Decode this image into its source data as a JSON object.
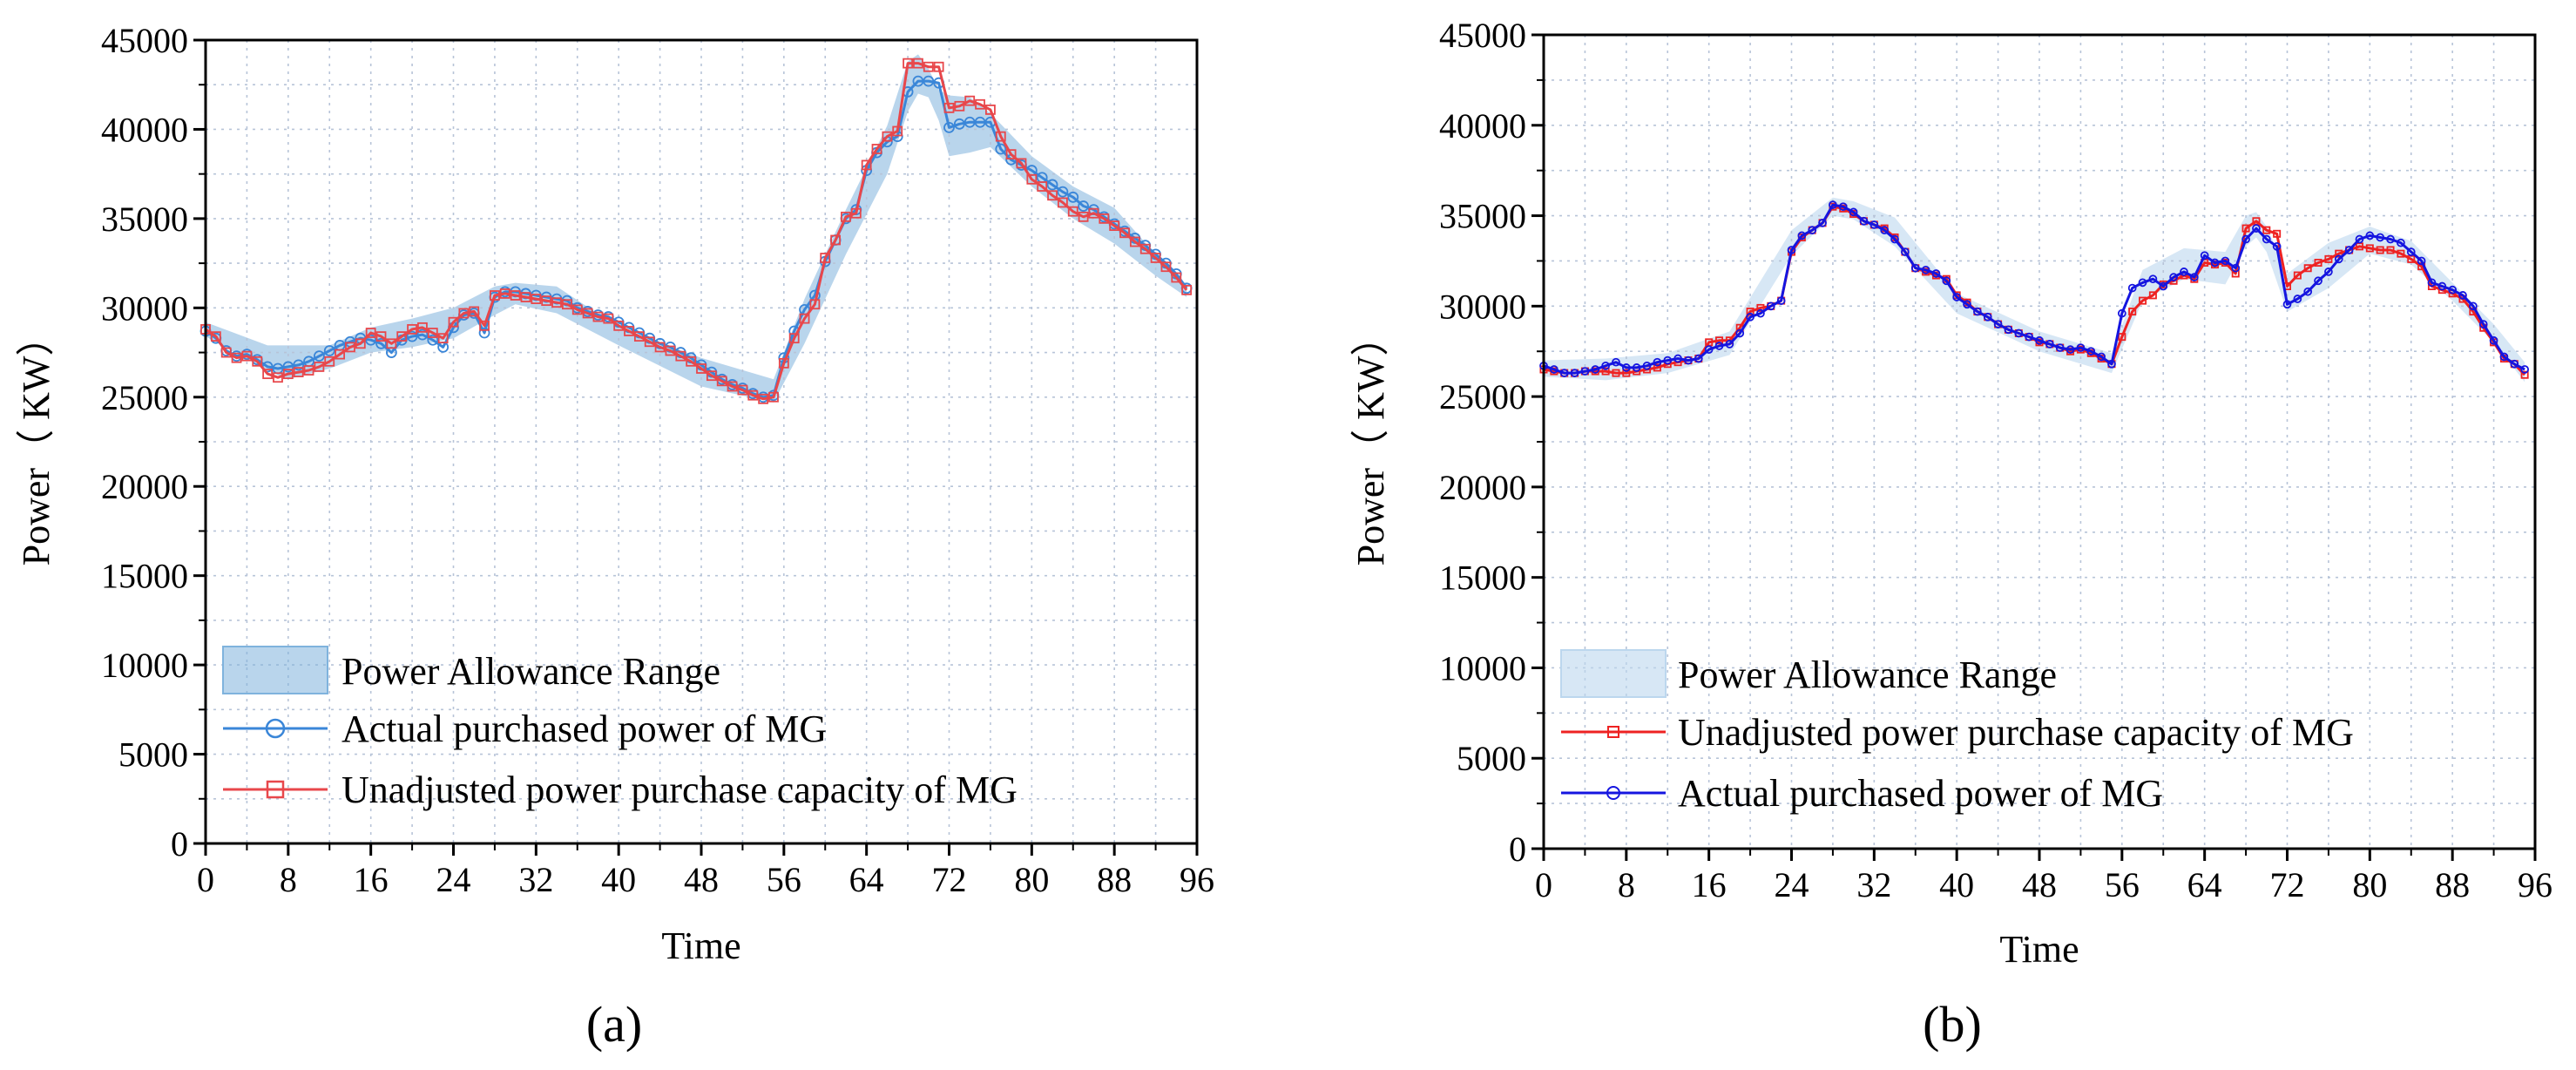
{
  "chart_data": [
    {
      "panel_label": "(a)",
      "type": "line",
      "xlabel": "Time",
      "ylabel": "Power（ KW）",
      "xlim": [
        0,
        96
      ],
      "ylim": [
        0,
        45000
      ],
      "xticks": [
        0,
        8,
        16,
        24,
        32,
        40,
        48,
        56,
        64,
        72,
        80,
        88,
        96
      ],
      "yticks": [
        0,
        5000,
        10000,
        15000,
        20000,
        25000,
        30000,
        35000,
        40000,
        45000
      ],
      "legend_position": "bottom-left",
      "grid": true,
      "band": {
        "name": "Power Allowance Range",
        "color": "#7fb3dd",
        "opacity": 0.55,
        "x": [
          0,
          6,
          8,
          12,
          16,
          20,
          24,
          28,
          30,
          34,
          40,
          48,
          55,
          58,
          62,
          66,
          68,
          69,
          70,
          71,
          72,
          74,
          76,
          80,
          84,
          88,
          92,
          95
        ],
        "lower": [
          28400,
          26500,
          26000,
          26600,
          27500,
          27800,
          28300,
          29600,
          30200,
          29700,
          27900,
          25600,
          24700,
          28000,
          33000,
          37500,
          41000,
          42000,
          41800,
          40500,
          38500,
          38700,
          39000,
          36800,
          35000,
          33600,
          31800,
          30600
        ],
        "upper": [
          29200,
          27900,
          27900,
          27900,
          28900,
          29400,
          30000,
          31200,
          31400,
          31200,
          28900,
          27200,
          26000,
          30500,
          35500,
          40200,
          43800,
          44200,
          43400,
          42200,
          41900,
          41800,
          40900,
          38500,
          36800,
          35600,
          33000,
          31300
        ]
      },
      "series": [
        {
          "name": "Actual purchased power of MG",
          "color": "#3a86d8",
          "marker": "circle",
          "x": [
            0,
            1,
            2,
            3,
            4,
            5,
            6,
            7,
            8,
            9,
            10,
            11,
            12,
            13,
            14,
            15,
            16,
            17,
            18,
            19,
            20,
            21,
            22,
            23,
            24,
            25,
            26,
            27,
            28,
            29,
            30,
            31,
            32,
            33,
            34,
            35,
            36,
            37,
            38,
            39,
            40,
            41,
            42,
            43,
            44,
            45,
            46,
            47,
            48,
            49,
            50,
            51,
            52,
            53,
            54,
            55,
            56,
            57,
            58,
            59,
            60,
            61,
            62,
            63,
            64,
            65,
            66,
            67,
            68,
            69,
            70,
            71,
            72,
            73,
            74,
            75,
            76,
            77,
            78,
            79,
            80,
            81,
            82,
            83,
            84,
            85,
            86,
            87,
            88,
            89,
            90,
            91,
            92,
            93,
            94,
            95
          ],
          "y": [
            28700,
            28300,
            27600,
            27300,
            27400,
            27100,
            26700,
            26600,
            26700,
            26800,
            27000,
            27300,
            27600,
            27900,
            28100,
            28300,
            28200,
            28000,
            27500,
            28200,
            28400,
            28500,
            28200,
            27800,
            28900,
            29600,
            29700,
            28600,
            30600,
            30900,
            30900,
            30800,
            30700,
            30600,
            30500,
            30400,
            30000,
            29800,
            29600,
            29500,
            29200,
            28900,
            28600,
            28300,
            28000,
            27800,
            27500,
            27200,
            26800,
            26400,
            26000,
            25700,
            25500,
            25200,
            25000,
            25100,
            27200,
            28700,
            29900,
            30700,
            32600,
            33800,
            35000,
            35500,
            37700,
            38700,
            39300,
            39600,
            42100,
            42700,
            42700,
            42600,
            40100,
            40300,
            40400,
            40400,
            40400,
            38900,
            38300,
            38000,
            37700,
            37300,
            36900,
            36500,
            36200,
            35700,
            35500,
            35100,
            34700,
            34300,
            33900,
            33500,
            33000,
            32500,
            31900,
            31100
          ]
        },
        {
          "name": "Unadjusted power purchase capacity of MG",
          "color": "#e8474b",
          "marker": "square",
          "x": [
            0,
            1,
            2,
            3,
            4,
            5,
            6,
            7,
            8,
            9,
            10,
            11,
            12,
            13,
            14,
            15,
            16,
            17,
            18,
            19,
            20,
            21,
            22,
            23,
            24,
            25,
            26,
            27,
            28,
            29,
            30,
            31,
            32,
            33,
            34,
            35,
            36,
            37,
            38,
            39,
            40,
            41,
            42,
            43,
            44,
            45,
            46,
            47,
            48,
            49,
            50,
            51,
            52,
            53,
            54,
            55,
            56,
            57,
            58,
            59,
            60,
            61,
            62,
            63,
            64,
            65,
            66,
            67,
            68,
            69,
            70,
            71,
            72,
            73,
            74,
            75,
            76,
            77,
            78,
            79,
            80,
            81,
            82,
            83,
            84,
            85,
            86,
            87,
            88,
            89,
            90,
            91,
            92,
            93,
            94,
            95
          ],
          "y": [
            28800,
            28400,
            27500,
            27200,
            27300,
            27000,
            26300,
            26100,
            26300,
            26400,
            26500,
            26700,
            27000,
            27400,
            27800,
            28000,
            28600,
            28400,
            28000,
            28400,
            28800,
            28900,
            28600,
            28300,
            29200,
            29700,
            29800,
            29000,
            30700,
            30800,
            30700,
            30600,
            30500,
            30400,
            30300,
            30200,
            29900,
            29700,
            29500,
            29400,
            29000,
            28700,
            28400,
            28100,
            27800,
            27600,
            27300,
            27000,
            26600,
            26200,
            25900,
            25600,
            25400,
            25100,
            24900,
            25000,
            26900,
            28300,
            29400,
            30200,
            32800,
            33800,
            35100,
            35300,
            38000,
            38900,
            39600,
            39900,
            43700,
            43700,
            43500,
            43500,
            41200,
            41300,
            41600,
            41400,
            41100,
            39600,
            38600,
            38100,
            37200,
            36800,
            36300,
            35900,
            35400,
            35100,
            35300,
            35000,
            34600,
            34200,
            33700,
            33300,
            32800,
            32300,
            31700,
            31000
          ]
        }
      ]
    },
    {
      "panel_label": "(b)",
      "type": "line",
      "xlabel": "Time",
      "ylabel": "Power（ KW）",
      "xlim": [
        0,
        96
      ],
      "ylim": [
        0,
        45000
      ],
      "xticks": [
        0,
        8,
        16,
        24,
        32,
        40,
        48,
        56,
        64,
        72,
        80,
        88,
        96
      ],
      "yticks": [
        0,
        5000,
        10000,
        15000,
        20000,
        25000,
        30000,
        35000,
        40000,
        45000
      ],
      "legend_position": "bottom-left",
      "grid": true,
      "band": {
        "name": "Power Allowance Range",
        "color": "#bcd7ee",
        "opacity": 0.6,
        "x": [
          0,
          6,
          12,
          18,
          24,
          28,
          30,
          34,
          40,
          48,
          55,
          58,
          62,
          66,
          68,
          69,
          70,
          72,
          76,
          80,
          84,
          88,
          92,
          95
        ],
        "lower": [
          26100,
          25900,
          26300,
          27300,
          32800,
          35000,
          34800,
          33300,
          29600,
          27500,
          26300,
          30300,
          31500,
          31200,
          33300,
          33800,
          33000,
          29700,
          31000,
          32900,
          32300,
          30300,
          28000,
          25800
        ],
        "upper": [
          27000,
          27100,
          27400,
          28600,
          34200,
          36000,
          35800,
          34900,
          30700,
          28600,
          27400,
          32000,
          33200,
          33000,
          35000,
          35200,
          34400,
          31800,
          33500,
          34400,
          33600,
          31300,
          29000,
          26900
        ]
      },
      "series": [
        {
          "name": "Unadjusted power purchase capacity of MG",
          "color": "#ee2222",
          "marker": "square",
          "x": [
            0,
            1,
            2,
            3,
            4,
            5,
            6,
            7,
            8,
            9,
            10,
            11,
            12,
            13,
            14,
            15,
            16,
            17,
            18,
            19,
            20,
            21,
            22,
            23,
            24,
            25,
            26,
            27,
            28,
            29,
            30,
            31,
            32,
            33,
            34,
            35,
            36,
            37,
            38,
            39,
            40,
            41,
            42,
            43,
            44,
            45,
            46,
            47,
            48,
            49,
            50,
            51,
            52,
            53,
            54,
            55,
            56,
            57,
            58,
            59,
            60,
            61,
            62,
            63,
            64,
            65,
            66,
            67,
            68,
            69,
            70,
            71,
            72,
            73,
            74,
            75,
            76,
            77,
            78,
            79,
            80,
            81,
            82,
            83,
            84,
            85,
            86,
            87,
            88,
            89,
            90,
            91,
            92,
            93,
            94,
            95
          ],
          "y": [
            26500,
            26400,
            26300,
            26300,
            26400,
            26400,
            26400,
            26300,
            26300,
            26400,
            26500,
            26600,
            26800,
            26900,
            27000,
            27100,
            28000,
            28100,
            28100,
            28800,
            29700,
            29900,
            30000,
            30300,
            33000,
            33800,
            34200,
            34600,
            35500,
            35400,
            35100,
            34700,
            34500,
            34300,
            33800,
            33000,
            32100,
            31900,
            31700,
            31500,
            30600,
            30200,
            29700,
            29400,
            29000,
            28700,
            28500,
            28300,
            28000,
            27900,
            27700,
            27500,
            27600,
            27400,
            27100,
            26800,
            28300,
            29700,
            30300,
            30600,
            31200,
            31400,
            31700,
            31500,
            32400,
            32300,
            32400,
            31800,
            34300,
            34700,
            34200,
            34000,
            31100,
            31700,
            32100,
            32400,
            32600,
            32900,
            33100,
            33300,
            33200,
            33100,
            33100,
            32900,
            32600,
            32200,
            31100,
            30900,
            30700,
            30400,
            29700,
            28800,
            28000,
            27100,
            26800,
            26200
          ]
        },
        {
          "name": "Actual purchased power of MG",
          "color": "#1515e0",
          "marker": "circle",
          "x": [
            0,
            1,
            2,
            3,
            4,
            5,
            6,
            7,
            8,
            9,
            10,
            11,
            12,
            13,
            14,
            15,
            16,
            17,
            18,
            19,
            20,
            21,
            22,
            23,
            24,
            25,
            26,
            27,
            28,
            29,
            30,
            31,
            32,
            33,
            34,
            35,
            36,
            37,
            38,
            39,
            40,
            41,
            42,
            43,
            44,
            45,
            46,
            47,
            48,
            49,
            50,
            51,
            52,
            53,
            54,
            55,
            56,
            57,
            58,
            59,
            60,
            61,
            62,
            63,
            64,
            65,
            66,
            67,
            68,
            69,
            70,
            71,
            72,
            73,
            74,
            75,
            76,
            77,
            78,
            79,
            80,
            81,
            82,
            83,
            84,
            85,
            86,
            87,
            88,
            89,
            90,
            91,
            92,
            93,
            94,
            95
          ],
          "y": [
            26700,
            26500,
            26300,
            26300,
            26400,
            26500,
            26700,
            26900,
            26600,
            26600,
            26700,
            26900,
            27000,
            27100,
            27000,
            27100,
            27600,
            27800,
            27900,
            28500,
            29400,
            29600,
            30000,
            30300,
            33100,
            33900,
            34200,
            34600,
            35600,
            35500,
            35200,
            34700,
            34500,
            34200,
            33700,
            33000,
            32100,
            32000,
            31800,
            31400,
            30500,
            30100,
            29700,
            29400,
            29000,
            28700,
            28500,
            28300,
            28100,
            27900,
            27700,
            27600,
            27700,
            27500,
            27200,
            26800,
            29600,
            31000,
            31300,
            31500,
            31100,
            31600,
            31900,
            31600,
            32800,
            32400,
            32500,
            32100,
            33700,
            34300,
            33700,
            33300,
            30100,
            30400,
            30800,
            31400,
            31900,
            32600,
            33100,
            33700,
            33900,
            33800,
            33700,
            33500,
            33000,
            32500,
            31300,
            31100,
            30900,
            30600,
            30000,
            29000,
            28100,
            27200,
            26800,
            26500
          ]
        }
      ]
    }
  ]
}
